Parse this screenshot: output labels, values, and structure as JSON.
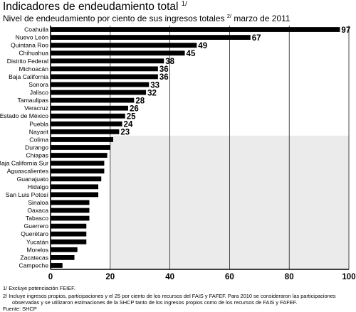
{
  "header": {
    "title": "Indicadores de endeudamiento total",
    "title_note": "1/",
    "subtitle_a": "Nivel de endeudamiento por ciento de sus ingresos totales",
    "subtitle_note": "2/",
    "subtitle_b": " marzo de 2011"
  },
  "chart_data": {
    "type": "bar",
    "orientation": "horizontal",
    "categories": [
      "Coahuila",
      "Nuevo León",
      "Quintana Roo",
      "Chihuahua",
      "Distrito Federal",
      "Michoacán",
      "Baja California",
      "Sonora",
      "Jalisco",
      "Tamaulipas",
      "Veracruz",
      "Estado de México",
      "Puebla",
      "Nayarit",
      "Colima",
      "Durango",
      "Chiapas",
      "Baja California Sur",
      "Aguascalientes",
      "Guanajuato",
      "Hidalgo",
      "San Luis Potosí",
      "Sinaloa",
      "Oaxaca",
      "Tabasco",
      "Guerrero",
      "Querétaro",
      "Yucatán",
      "Morelos",
      "Zacatecas",
      "Campeche"
    ],
    "values": [
      97,
      67,
      49,
      45,
      38,
      36,
      36,
      33,
      32,
      28,
      26,
      25,
      24,
      23,
      21,
      20,
      19,
      18,
      18,
      17,
      16,
      16,
      13,
      13,
      13,
      12,
      12,
      12,
      9,
      8,
      4
    ],
    "data_labels": [
      "97",
      "67",
      "49",
      "45",
      "38",
      "36",
      "36",
      "33",
      "32",
      "28",
      "26",
      "25",
      "24",
      "23",
      "",
      "",
      "",
      "",
      "",
      "",
      "",
      "",
      "",
      "",
      "",
      "",
      "",
      "",
      "",
      "",
      ""
    ],
    "xlim": [
      0,
      100
    ],
    "xticks": [
      "0",
      "20",
      "40",
      "60",
      "80",
      "100"
    ],
    "grid": true,
    "bar_color": "#000000",
    "shaded_band_color": "#ebebeb"
  },
  "footnotes": {
    "note1": "1/ Excluye potenciación FEIEF.",
    "note2_line1": "2/ Incluye ingresos propios, participaciones y el 25 por ciento de los recursos del FAIS y FAFEF. Para 2010 se consideraron las participaciones",
    "note2_line2": "observadas y se utilizaron estimaciones de la SHCP tanto de los ingresos propios como de los recursos de FAIS y FAFEF.",
    "source": "Fuente: SHCP"
  }
}
